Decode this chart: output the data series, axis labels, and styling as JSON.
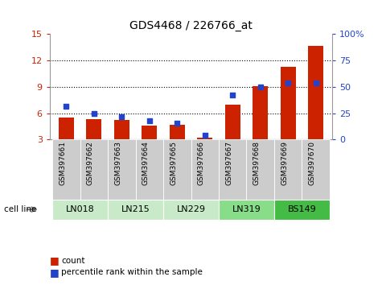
{
  "title": "GDS4468 / 226766_at",
  "samples": [
    "GSM397661",
    "GSM397662",
    "GSM397663",
    "GSM397664",
    "GSM397665",
    "GSM397666",
    "GSM397667",
    "GSM397668",
    "GSM397669",
    "GSM397670"
  ],
  "count_values": [
    5.5,
    5.3,
    5.2,
    4.6,
    4.7,
    3.2,
    7.0,
    9.1,
    11.3,
    13.7
  ],
  "percentile_values": [
    32,
    25,
    22,
    18,
    16,
    4,
    42,
    50,
    54,
    54
  ],
  "cell_lines": [
    {
      "name": "LN018",
      "samples": [
        0,
        1
      ],
      "color": "#c8eac8"
    },
    {
      "name": "LN215",
      "samples": [
        2,
        3
      ],
      "color": "#c8eac8"
    },
    {
      "name": "LN229",
      "samples": [
        4,
        5
      ],
      "color": "#c8eac8"
    },
    {
      "name": "LN319",
      "samples": [
        6,
        7
      ],
      "color": "#88dd88"
    },
    {
      "name": "BS149",
      "samples": [
        8,
        9
      ],
      "color": "#44bb44"
    }
  ],
  "ylim_left": [
    3,
    15
  ],
  "ylim_right": [
    0,
    100
  ],
  "yticks_left": [
    3,
    6,
    9,
    12,
    15
  ],
  "yticks_right": [
    0,
    25,
    50,
    75,
    100
  ],
  "bar_color": "#cc2200",
  "dot_color": "#2244cc",
  "bar_bottom": 3.0,
  "bg_color": "#ffffff",
  "gray_box_color": "#cccccc",
  "label_count": "count",
  "label_percentile": "percentile rank within the sample",
  "cell_line_label": "cell line"
}
